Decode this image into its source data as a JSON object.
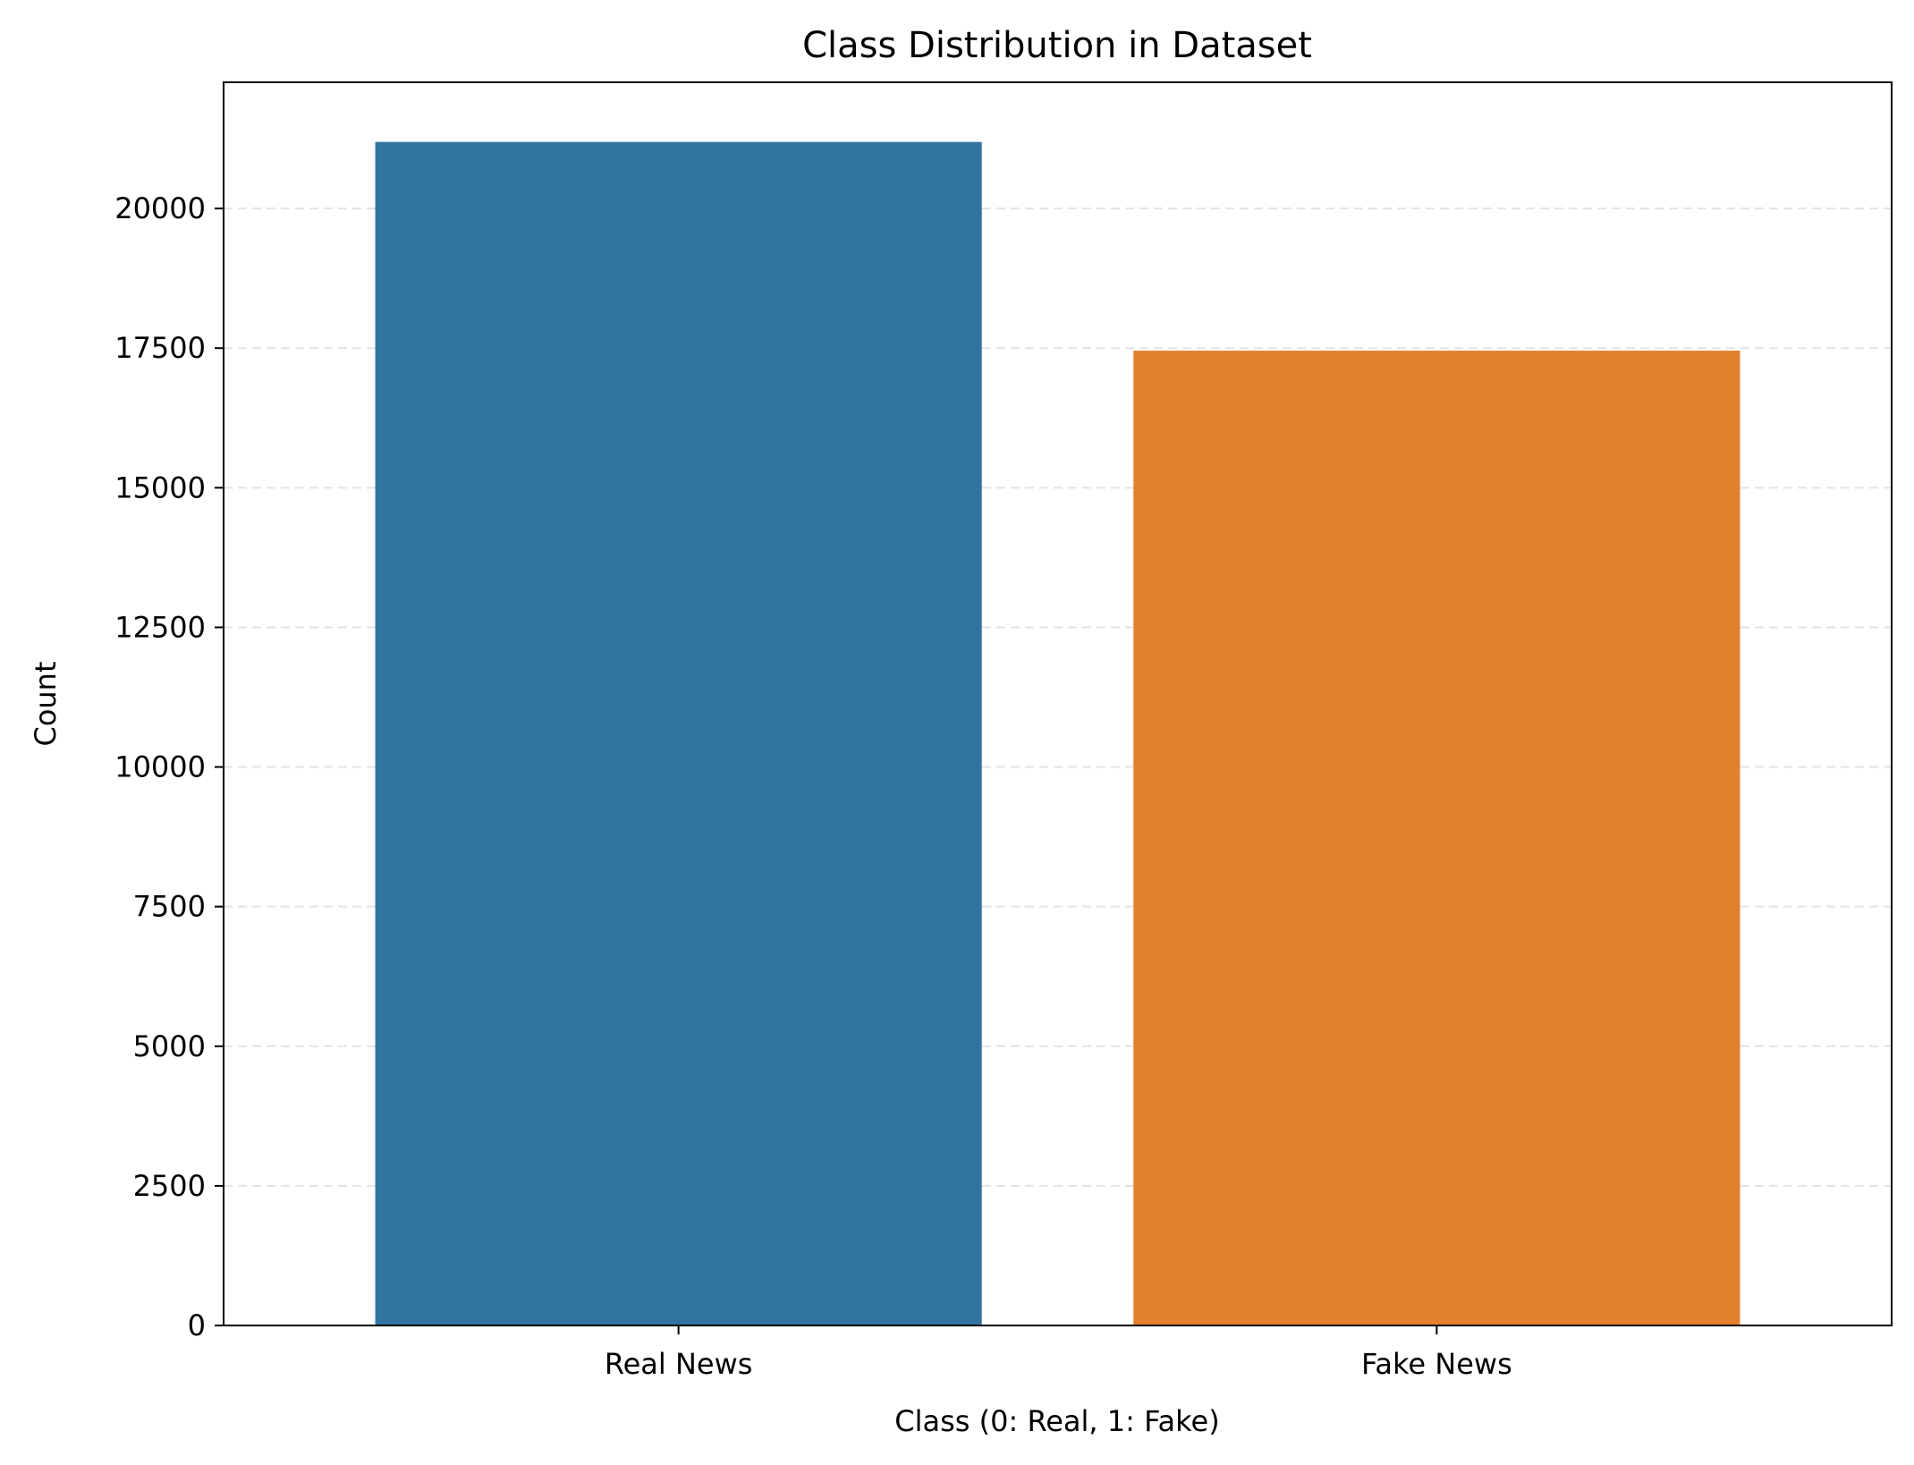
{
  "chart_data": {
    "type": "bar",
    "title": "Class Distribution in Dataset",
    "xlabel": "Class (0: Real, 1: Fake)",
    "ylabel": "Count",
    "categories": [
      "Real News",
      "Fake News"
    ],
    "values": [
      21192,
      17455
    ],
    "colors": [
      "#3274a1",
      "#e1812c"
    ],
    "ylim": [
      0,
      22260
    ],
    "yticks": [
      0,
      2500,
      5000,
      7500,
      10000,
      12500,
      15000,
      17500,
      20000
    ],
    "ytick_labels": [
      "0",
      "2500",
      "5000",
      "7500",
      "10000",
      "12500",
      "15000",
      "17500",
      "20000"
    ],
    "grid": "y-dashed",
    "legend": "none"
  }
}
